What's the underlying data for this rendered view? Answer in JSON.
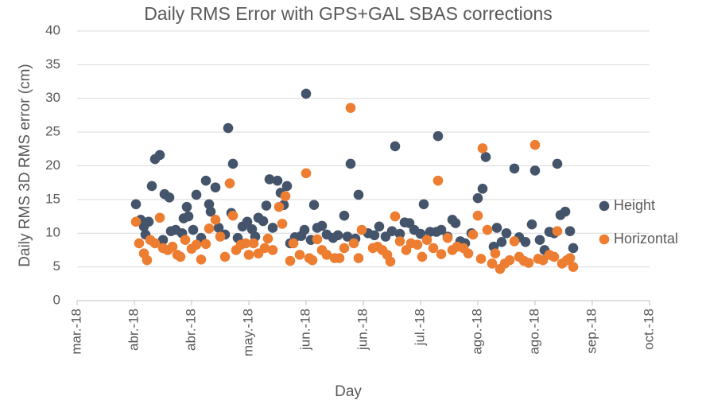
{
  "chart_data": {
    "type": "scatter",
    "title": "Daily RMS Error with GPS+GAL SBAS corrections",
    "x_label": "Day",
    "y_label": "Daily RMS 3D RMS error (cm)",
    "xlim": [
      0,
      360
    ],
    "xticks": [
      {
        "value": 0,
        "label": "mar.-18"
      },
      {
        "value": 36,
        "label": "abr.-18"
      },
      {
        "value": 72,
        "label": "abr.-18"
      },
      {
        "value": 108,
        "label": "may.-18"
      },
      {
        "value": 144,
        "label": "jun.-18"
      },
      {
        "value": 180,
        "label": "jun.-18"
      },
      {
        "value": 216,
        "label": "jul.-18"
      },
      {
        "value": 252,
        "label": "ago.-18"
      },
      {
        "value": 288,
        "label": "ago.-18"
      },
      {
        "value": 324,
        "label": "sep.-18"
      },
      {
        "value": 360,
        "label": "oct.-18"
      }
    ],
    "ylim": [
      0,
      40
    ],
    "yticks": [
      0,
      5,
      10,
      15,
      20,
      25,
      30,
      35,
      40
    ],
    "grid": true,
    "legend": "right",
    "series": [
      {
        "name": "Height",
        "color": "#44546a",
        "x": [
          37,
          40,
          42,
          43,
          45,
          47,
          49,
          52,
          54,
          55,
          58,
          59,
          62,
          66,
          67,
          69,
          70,
          73,
          75,
          78,
          81,
          83,
          84,
          87,
          89,
          93,
          95,
          97,
          98,
          101,
          104,
          107,
          110,
          112,
          114,
          117,
          119,
          121,
          123,
          126,
          128,
          130,
          132,
          134,
          137,
          141,
          143,
          144,
          147,
          149,
          151,
          154,
          157,
          161,
          164,
          168,
          170,
          172,
          175,
          177,
          183,
          187,
          190,
          194,
          198,
          200,
          203,
          206,
          209,
          212,
          216,
          218,
          222,
          226,
          227,
          229,
          233,
          236,
          238,
          241,
          244,
          248,
          252,
          255,
          257,
          262,
          264,
          267,
          270,
          275,
          278,
          282,
          286,
          288,
          291,
          294,
          297,
          300,
          302,
          304,
          307,
          310,
          312
        ],
        "values": [
          14.3,
          12,
          11,
          9.8,
          11.7,
          17,
          21,
          21.6,
          9,
          15.8,
          15.3,
          10.3,
          10.5,
          10,
          12.2,
          13.9,
          12.5,
          10.5,
          15.7,
          9.3,
          17.8,
          14.3,
          13.2,
          16.8,
          10.8,
          9.8,
          25.6,
          13,
          20.3,
          9.3,
          11,
          11.7,
          10.6,
          9.5,
          12.3,
          11.8,
          14.1,
          18,
          10.8,
          17.8,
          16,
          14.2,
          17,
          8.5,
          9.4,
          9.6,
          10.5,
          30.7,
          9,
          14.2,
          10.8,
          11.1,
          9.8,
          9.3,
          9.7,
          12.6,
          9.5,
          20.3,
          9.2,
          15.7,
          10,
          9.7,
          11,
          9.5,
          10.3,
          22.9,
          9.9,
          11.6,
          11.5,
          10.5,
          9.9,
          14.3,
          10.2,
          10.2,
          24.4,
          10.5,
          9.5,
          12,
          11.5,
          8.8,
          8.5,
          10,
          15.2,
          16.6,
          21.3,
          8,
          10.8,
          8.7,
          10,
          19.6,
          9.4,
          8.7,
          11.3,
          19.3,
          9,
          7.5,
          10.2,
          10,
          20.3,
          12.7,
          13.2,
          10.3,
          7.8
        ]
      },
      {
        "name": "Horizontal",
        "color": "#ed7d31",
        "x": [
          37,
          39,
          42,
          44,
          46,
          49,
          52,
          54,
          57,
          60,
          63,
          65,
          68,
          72,
          75,
          78,
          81,
          83,
          87,
          90,
          93,
          96,
          98,
          100,
          103,
          106,
          108,
          111,
          114,
          118,
          120,
          123,
          127,
          129,
          131,
          134,
          136,
          140,
          144,
          146,
          148,
          151,
          154,
          157,
          162,
          165,
          168,
          172,
          174,
          177,
          179,
          186,
          189,
          192,
          195,
          197,
          200,
          203,
          207,
          210,
          214,
          217,
          220,
          224,
          227,
          229,
          233,
          236,
          239,
          243,
          246,
          249,
          252,
          254,
          255,
          258,
          261,
          263,
          266,
          269,
          272,
          275,
          278,
          281,
          284,
          288,
          290,
          293,
          297,
          300,
          302,
          305,
          308,
          310,
          312
        ],
        "values": [
          11.7,
          8.5,
          7,
          6,
          9,
          8.5,
          12.3,
          7.8,
          7.5,
          8,
          6.8,
          6.5,
          9,
          7.7,
          8.3,
          6.1,
          8.4,
          10.7,
          12,
          9.5,
          6.5,
          17.4,
          12.6,
          7.5,
          8.3,
          8.5,
          6.8,
          8.5,
          7,
          7.8,
          9.2,
          7.5,
          13.9,
          11.4,
          15.5,
          5.9,
          8.5,
          6.8,
          18.9,
          6.3,
          6,
          9.1,
          7.5,
          6.8,
          6.3,
          6.3,
          7.8,
          28.6,
          8.5,
          6.3,
          10.5,
          7.8,
          8,
          7.5,
          6.8,
          5.8,
          12.5,
          8.8,
          7.5,
          8.5,
          8.3,
          6.5,
          9,
          7.8,
          17.8,
          6.9,
          9.3,
          7.5,
          8,
          7.8,
          7,
          9.8,
          12.6,
          6.2,
          22.6,
          10.5,
          5.5,
          7,
          4.7,
          5.5,
          6,
          8.8,
          6.5,
          5.9,
          5.6,
          23.1,
          6.2,
          6,
          6.8,
          6.5,
          10.3,
          5.5,
          6,
          6.3,
          5
        ]
      }
    ]
  }
}
